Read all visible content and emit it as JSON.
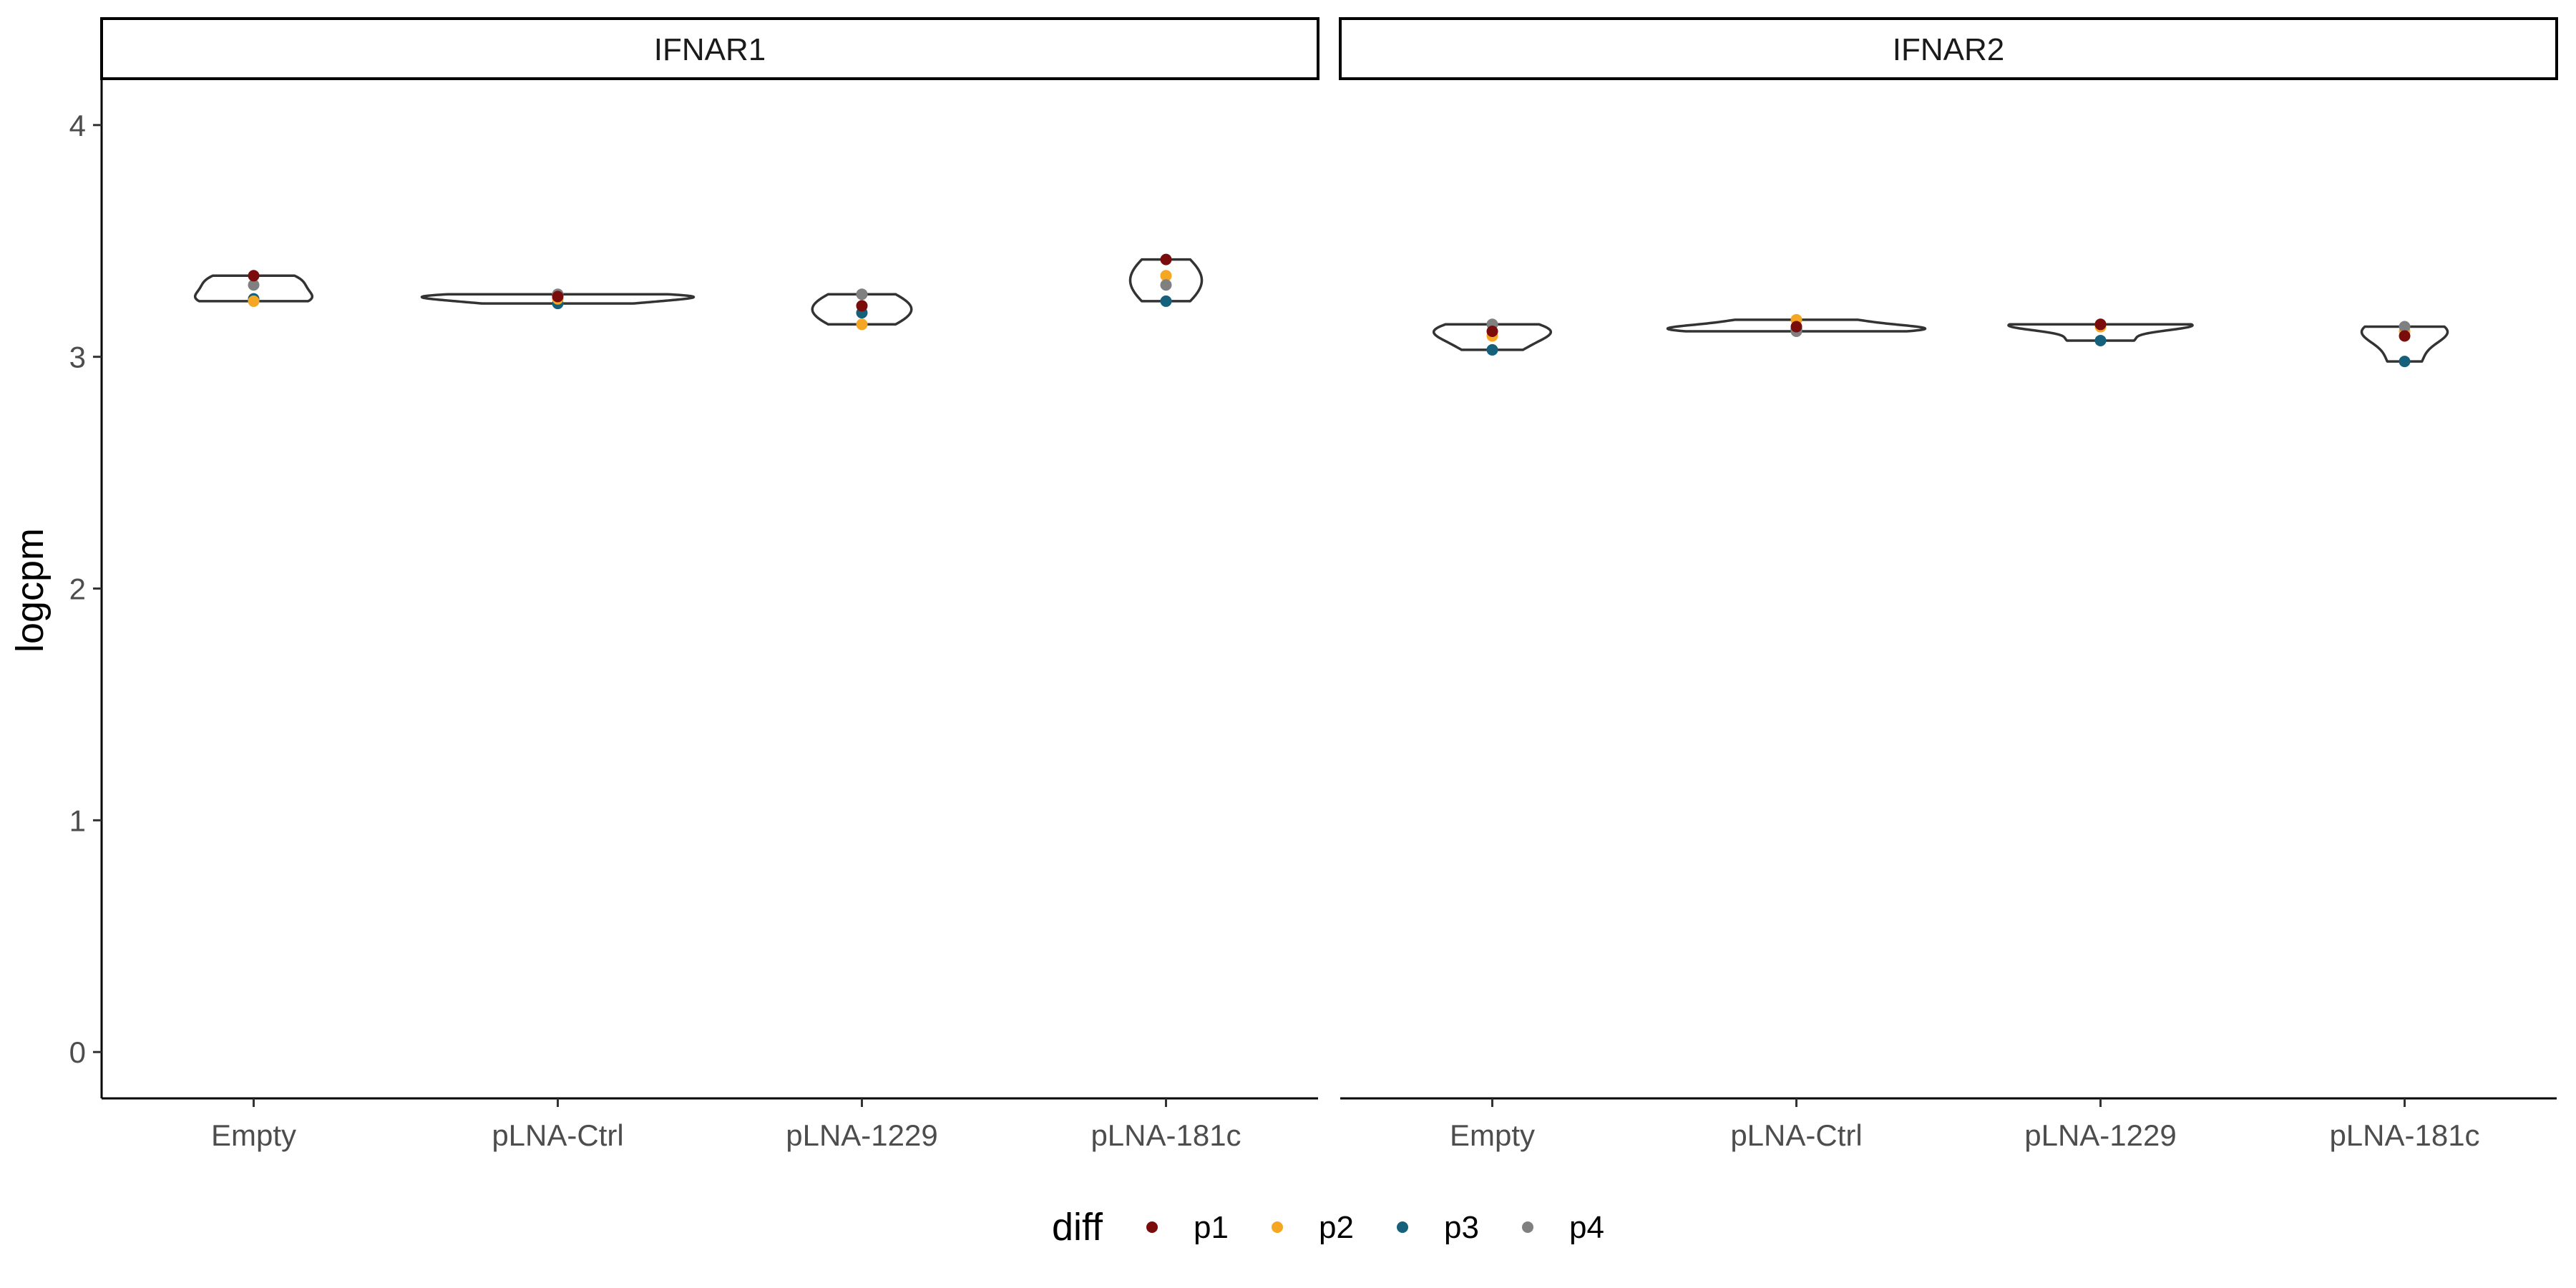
{
  "chart_data": {
    "type": "violin",
    "ylabel": "logcpm",
    "xlabel": "",
    "ylim": [
      -0.2,
      4.2
    ],
    "yticks": [
      "0",
      "1",
      "2",
      "3",
      "4"
    ],
    "grid": false,
    "legend": {
      "title": "diff",
      "placement": "bottom",
      "entries": [
        {
          "label": "p1",
          "color": "#7a0c0c"
        },
        {
          "label": "p2",
          "color": "#f5a623"
        },
        {
          "label": "p3",
          "color": "#15607a"
        },
        {
          "label": "p4",
          "color": "#808080"
        }
      ]
    },
    "facets": [
      {
        "title": "IFNAR1",
        "categories": [
          {
            "name": "Empty",
            "points": {
              "p1": 3.35,
              "p2": 3.24,
              "p3": 3.25,
              "p4": 3.31
            }
          },
          {
            "name": "pLNA-Ctrl",
            "points": {
              "p1": 3.26,
              "p2": 3.25,
              "p3": 3.23,
              "p4": 3.27
            }
          },
          {
            "name": "pLNA-1229",
            "points": {
              "p1": 3.22,
              "p2": 3.14,
              "p3": 3.19,
              "p4": 3.27
            }
          },
          {
            "name": "pLNA-181c",
            "points": {
              "p1": 3.42,
              "p2": 3.35,
              "p3": 3.24,
              "p4": 3.31
            }
          }
        ]
      },
      {
        "title": "IFNAR2",
        "categories": [
          {
            "name": "Empty",
            "points": {
              "p1": 3.11,
              "p2": 3.09,
              "p3": 3.03,
              "p4": 3.14
            }
          },
          {
            "name": "pLNA-Ctrl",
            "points": {
              "p1": 3.13,
              "p2": 3.16,
              "p3": 3.12,
              "p4": 3.11
            }
          },
          {
            "name": "pLNA-1229",
            "points": {
              "p1": 3.14,
              "p2": 3.13,
              "p3": 3.07,
              "p4": 3.14
            }
          },
          {
            "name": "pLNA-181c",
            "points": {
              "p1": 3.09,
              "p2": 3.11,
              "p3": 2.98,
              "p4": 3.13
            }
          }
        ]
      }
    ]
  }
}
